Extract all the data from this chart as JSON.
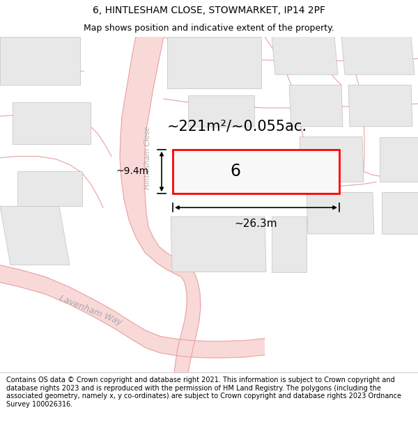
{
  "title": "6, HINTLESHAM CLOSE, STOWMARKET, IP14 2PF",
  "subtitle": "Map shows position and indicative extent of the property.",
  "footer": "Contains OS data © Crown copyright and database right 2021. This information is subject to Crown copyright and database rights 2023 and is reproduced with the permission of HM Land Registry. The polygons (including the associated geometry, namely x, y co-ordinates) are subject to Crown copyright and database rights 2023 Ordnance Survey 100026316.",
  "bg_color": "#ffffff",
  "map_bg": "#ffffff",
  "road_fill": "#f9d8d8",
  "road_line": "#e8a0a0",
  "building_fill": "#e8e8e8",
  "building_edge": "#c0c0c0",
  "plot_color": "#ff0000",
  "area_text": "~221m²/~0.055ac.",
  "width_text": "~26.3m",
  "height_text": "~9.4m",
  "plot_number": "6",
  "road_label1": "Hintlesham Close",
  "road_label2": "Lavenham Way",
  "title_fontsize": 10,
  "subtitle_fontsize": 9,
  "footer_fontsize": 7
}
